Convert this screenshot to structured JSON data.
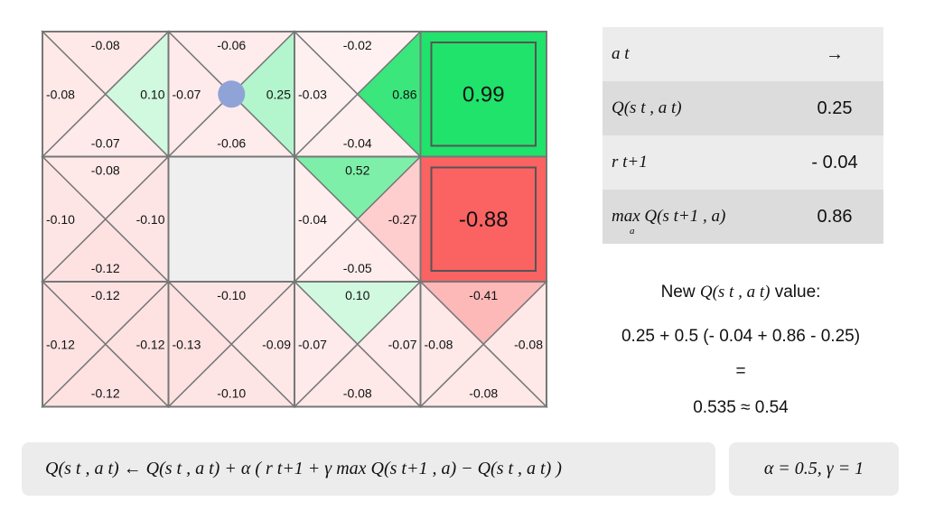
{
  "grid": {
    "rows": [
      [
        {
          "type": "cell",
          "up": "-0.08",
          "down": "-0.07",
          "left": "-0.08",
          "right": "0.10"
        },
        {
          "type": "cell",
          "up": "-0.06",
          "down": "-0.06",
          "left": "-0.07",
          "right": "0.25",
          "agent": true
        },
        {
          "type": "cell",
          "up": "-0.02",
          "down": "-0.04",
          "left": "-0.03",
          "right": "0.86"
        },
        {
          "type": "terminal",
          "value": "0.99",
          "color": "#1fe36a"
        }
      ],
      [
        {
          "type": "cell",
          "up": "-0.08",
          "down": "-0.12",
          "left": "-0.10",
          "right": "-0.10"
        },
        {
          "type": "wall"
        },
        {
          "type": "cell",
          "up": "0.52",
          "down": "-0.05",
          "left": "-0.04",
          "right": "-0.27"
        },
        {
          "type": "terminal",
          "value": "-0.88",
          "color": "#fb6262"
        }
      ],
      [
        {
          "type": "cell",
          "up": "-0.12",
          "down": "-0.12",
          "left": "-0.12",
          "right": "-0.12"
        },
        {
          "type": "cell",
          "up": "-0.10",
          "down": "-0.10",
          "left": "-0.13",
          "right": "-0.09"
        },
        {
          "type": "cell",
          "up": "0.10",
          "down": "-0.08",
          "left": "-0.07",
          "right": "-0.07"
        },
        {
          "type": "cell",
          "up": "-0.41",
          "down": "-0.08",
          "left": "-0.08",
          "right": "-0.08"
        }
      ]
    ],
    "colors": {
      "wall": "#efefef",
      "agent": "#8fa3d6",
      "line": "#777777"
    }
  },
  "table": {
    "action_label": "a t",
    "action_value": "→",
    "q_label": "Q(s t , a t)",
    "q_value": "0.25",
    "r_label": "r t+1",
    "r_value": "- 0.04",
    "max_label": "max Q(s t+1 , a)",
    "max_sub": "a",
    "max_value": "0.86"
  },
  "calc": {
    "line1_prefix": "New",
    "line1_math": "Q(s t , a t)",
    "line1_suffix": "value:",
    "line2": "0.25 + 0.5 (- 0.04 + 0.86 - 0.25)",
    "line3": "=",
    "line4": "0.535 ≈ 0.54"
  },
  "formula": {
    "text": "Q(s t , a t)  ← Q(s t , a t) + α ( r t+1 + γ max Q(s t+1 , a) − Q(s t , a t) )",
    "params": "α = 0.5,  γ = 1"
  }
}
